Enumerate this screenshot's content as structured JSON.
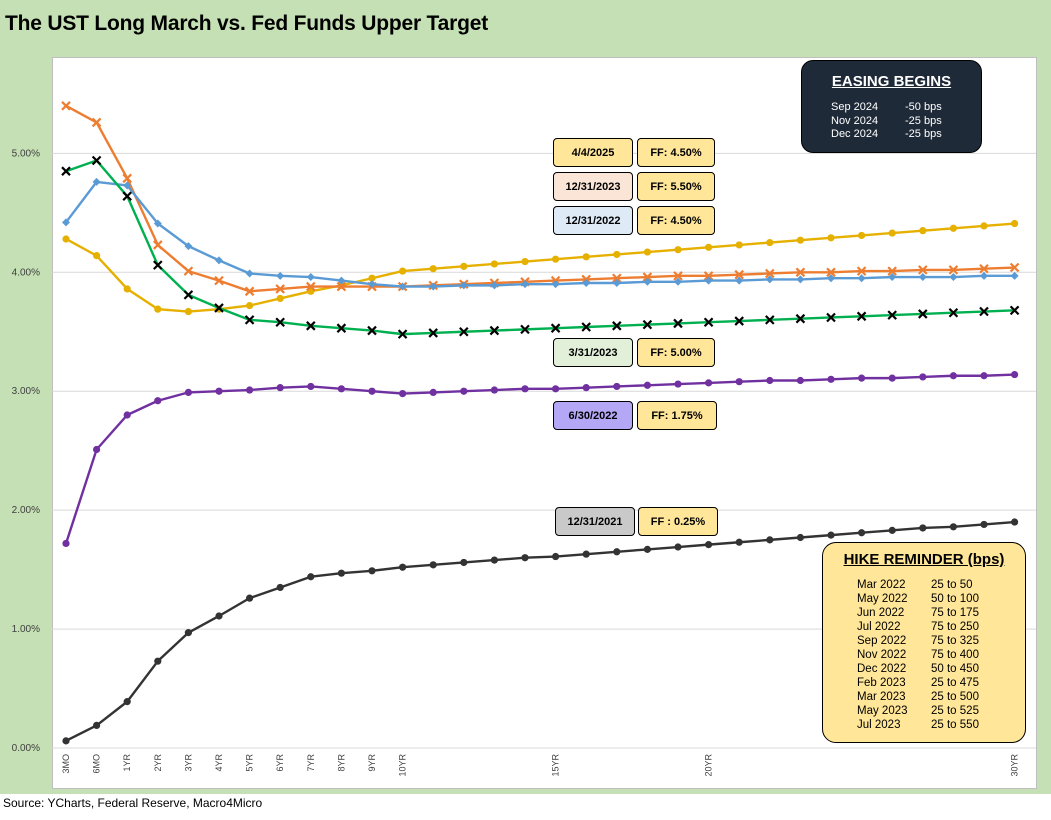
{
  "title": "The UST Long March vs. Fed Funds Upper Target",
  "source": "Source: YCharts, Federal Reserve, Macro4Micro",
  "chart_data": {
    "type": "line",
    "ylim": [
      0,
      5.6
    ],
    "yticks": [
      "0.00%",
      "1.00%",
      "2.00%",
      "3.00%",
      "4.00%",
      "5.00%"
    ],
    "x_labels": [
      "3MO",
      "6MO",
      "1YR",
      "2YR",
      "3YR",
      "4YR",
      "5YR",
      "6YR",
      "7YR",
      "8YR",
      "9YR",
      "10YR",
      "15YR",
      "20YR",
      "30YR"
    ],
    "series": [
      {
        "date": "4/4/2025",
        "color": "#e6b000",
        "marker": "circle",
        "values": [
          4.28,
          4.14,
          3.86,
          3.69,
          3.67,
          3.69,
          3.72,
          3.78,
          3.84,
          3.89,
          3.95,
          4.01,
          4.03,
          4.05,
          4.07,
          4.09,
          4.11,
          4.13,
          4.15,
          4.17,
          4.19,
          4.21,
          4.23,
          4.25,
          4.27,
          4.29,
          4.31,
          4.33,
          4.35,
          4.37,
          4.39,
          4.41
        ]
      },
      {
        "date": "12/31/2023",
        "color": "#ed7d31",
        "marker": "x",
        "values": [
          5.4,
          5.26,
          4.79,
          4.23,
          4.01,
          3.93,
          3.84,
          3.86,
          3.88,
          3.88,
          3.88,
          3.88,
          3.89,
          3.9,
          3.91,
          3.92,
          3.93,
          3.94,
          3.95,
          3.96,
          3.97,
          3.97,
          3.98,
          3.99,
          4.0,
          4.0,
          4.01,
          4.01,
          4.02,
          4.02,
          4.03,
          4.04
        ]
      },
      {
        "date": "12/31/2022",
        "color": "#5b9bd5",
        "marker": "diamond",
        "values": [
          4.42,
          4.76,
          4.73,
          4.41,
          4.22,
          4.1,
          3.99,
          3.97,
          3.96,
          3.93,
          3.9,
          3.88,
          3.88,
          3.89,
          3.89,
          3.9,
          3.9,
          3.91,
          3.91,
          3.92,
          3.92,
          3.93,
          3.93,
          3.94,
          3.94,
          3.95,
          3.95,
          3.96,
          3.96,
          3.96,
          3.97,
          3.97
        ]
      },
      {
        "date": "3/31/2023",
        "color": "#00b050",
        "marker": "x",
        "values": [
          4.85,
          4.94,
          4.64,
          4.06,
          3.81,
          3.7,
          3.6,
          3.58,
          3.55,
          3.53,
          3.51,
          3.48,
          3.49,
          3.5,
          3.51,
          3.52,
          3.53,
          3.54,
          3.55,
          3.56,
          3.57,
          3.58,
          3.59,
          3.6,
          3.61,
          3.62,
          3.63,
          3.64,
          3.65,
          3.66,
          3.67,
          3.68
        ]
      },
      {
        "date": "6/30/2022",
        "color": "#7030a0",
        "marker": "circle",
        "values": [
          1.72,
          2.51,
          2.8,
          2.92,
          2.99,
          3.0,
          3.01,
          3.03,
          3.04,
          3.02,
          3.0,
          2.98,
          2.99,
          3.0,
          3.01,
          3.02,
          3.02,
          3.03,
          3.04,
          3.05,
          3.06,
          3.07,
          3.08,
          3.09,
          3.09,
          3.1,
          3.11,
          3.11,
          3.12,
          3.13,
          3.13,
          3.14
        ]
      },
      {
        "date": "12/31/2021",
        "color": "#333333",
        "marker": "circle",
        "values": [
          0.06,
          0.19,
          0.39,
          0.73,
          0.97,
          1.11,
          1.26,
          1.35,
          1.44,
          1.47,
          1.49,
          1.52,
          1.54,
          1.56,
          1.58,
          1.6,
          1.61,
          1.63,
          1.65,
          1.67,
          1.69,
          1.71,
          1.73,
          1.75,
          1.77,
          1.79,
          1.81,
          1.83,
          1.85,
          1.86,
          1.88,
          1.9
        ]
      }
    ]
  },
  "labels": [
    {
      "date": "4/4/2025",
      "ff": "FF: 4.50%",
      "date_color": "#ffe699",
      "ff_color": "#ffe699"
    },
    {
      "date": "12/31/2023",
      "ff": "FF: 5.50%",
      "date_color": "#fbe5d6",
      "ff_color": "#ffe699"
    },
    {
      "date": "12/31/2022",
      "ff": "FF: 4.50%",
      "date_color": "#deebf7",
      "ff_color": "#ffe699"
    },
    {
      "date": "3/31/2023",
      "ff": "FF: 5.00%",
      "date_color": "#e2f0d9",
      "ff_color": "#ffe699"
    },
    {
      "date": "6/30/2022",
      "ff": "FF: 1.75%",
      "date_color": "#b4a7f6",
      "ff_color": "#ffe699"
    },
    {
      "date": "12/31/2021",
      "ff": "FF : 0.25%",
      "date_color": "#c9c9c9",
      "ff_color": "#ffe699"
    }
  ],
  "easing": {
    "heading": "EASING BEGINS",
    "rows": [
      {
        "date": "Sep 2024",
        "bps": "-50 bps"
      },
      {
        "date": "Nov 2024",
        "bps": "-25 bps"
      },
      {
        "date": "Dec 2024",
        "bps": "-25 bps"
      }
    ]
  },
  "hike": {
    "heading": "HIKE REMINDER (bps)",
    "rows": [
      {
        "month": "Mar 2022",
        "range": "25 to 50"
      },
      {
        "month": "May 2022",
        "range": "50 to 100"
      },
      {
        "month": "Jun 2022",
        "range": "75 to 175"
      },
      {
        "month": "Jul 2022",
        "range": "75 to 250"
      },
      {
        "month": "Sep 2022",
        "range": "75 to 325"
      },
      {
        "month": "Nov 2022",
        "range": "75 to 400"
      },
      {
        "month": "Dec 2022",
        "range": "50 to 450"
      },
      {
        "month": "Feb 2023",
        "range": "25 to 475"
      },
      {
        "month": "Mar 2023",
        "range": "25 to 500"
      },
      {
        "month": "May 2023",
        "range": "25 to 525"
      },
      {
        "month": "Jul 2023",
        "range": "25 to 550"
      }
    ]
  }
}
